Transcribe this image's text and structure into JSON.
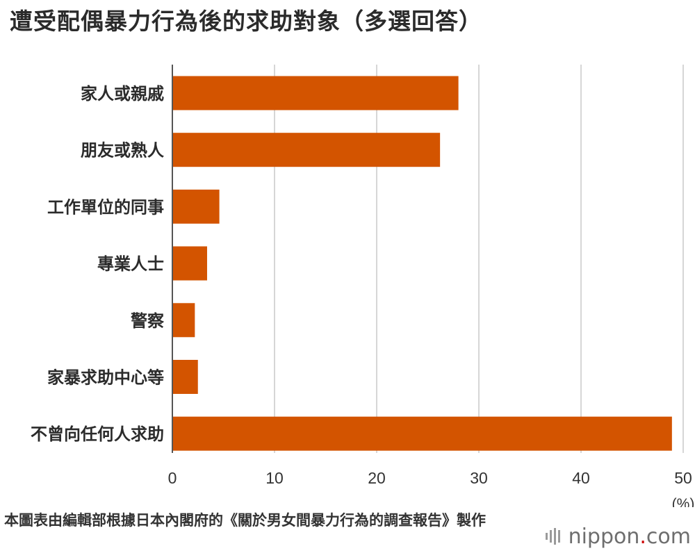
{
  "title": "遭受配偶暴力行為後的求助對象（多選回答）",
  "source": "本圖表由編輯部根據日本內閣府的《關於男女間暴力行為的調查報告》製作",
  "logo": {
    "name": "nippon",
    "dot": ".",
    "suffix": "com"
  },
  "chart_data": {
    "type": "bar",
    "orientation": "horizontal",
    "categories": [
      "家人或親戚",
      "朋友或熟人",
      "工作單位的同事",
      "專業人士",
      "警察",
      "家暴求助中心等",
      "不曾向任何人求助"
    ],
    "values": [
      28.0,
      26.2,
      4.6,
      3.4,
      2.2,
      2.5,
      48.9
    ],
    "xlim": [
      0,
      50
    ],
    "xticks": [
      0,
      10,
      20,
      30,
      40,
      50
    ],
    "xunit": "(%)",
    "bar_color": "#d35400",
    "grid": true
  }
}
